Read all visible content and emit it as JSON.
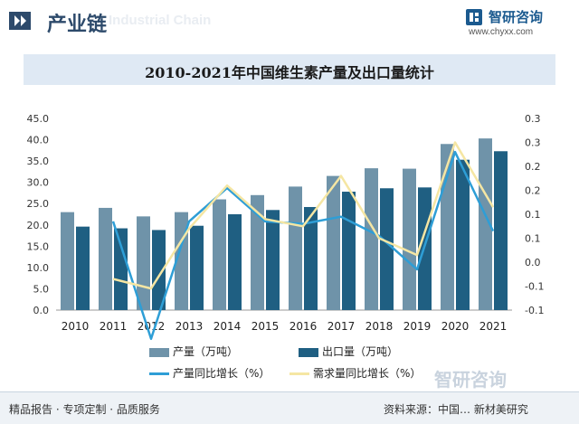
{
  "header": {
    "title": "产业链",
    "subtitle_en": "Industrial Chain",
    "logo_name": "智研咨询",
    "logo_url": "www.chyxx.com"
  },
  "chart_data": {
    "type": "bar",
    "title": "2010-2021年中国维生素产量及出口量统计",
    "categories": [
      "2010",
      "2011",
      "2012",
      "2013",
      "2014",
      "2015",
      "2016",
      "2017",
      "2018",
      "2019",
      "2020",
      "2021"
    ],
    "series": [
      {
        "name": "产量（万吨）",
        "kind": "bar",
        "axis": "left",
        "color": "#6f93a9",
        "values": [
          23,
          24,
          22,
          23,
          26,
          27,
          29,
          31.5,
          33.3,
          33.2,
          39,
          40.3
        ]
      },
      {
        "name": "出口量（万吨）",
        "kind": "bar",
        "axis": "left",
        "color": "#1f5f82",
        "values": [
          19.6,
          19.2,
          18.8,
          19.8,
          22.5,
          23.5,
          24.2,
          27.8,
          28.6,
          28.8,
          35.3,
          37.3
        ]
      },
      {
        "name": "产量同比增长（%）",
        "kind": "line",
        "axis": "right",
        "color": "#2e9ed6",
        "values": [
          null,
          0.085,
          -0.16,
          0.085,
          0.155,
          0.085,
          0.08,
          0.095,
          0.055,
          -0.015,
          0.23,
          0.065
        ]
      },
      {
        "name": "需求量同比增长（%）",
        "kind": "line",
        "axis": "right",
        "color": "#f5e6a3",
        "values": [
          null,
          -0.035,
          -0.055,
          0.07,
          0.16,
          0.09,
          0.075,
          0.18,
          0.05,
          0.015,
          0.25,
          0.115
        ]
      }
    ],
    "y_left": {
      "min": 0,
      "max": 45,
      "step": 5,
      "ticks": [
        "0.0",
        "5.0",
        "10.0",
        "15.0",
        "20.0",
        "25.0",
        "30.0",
        "35.0",
        "40.0",
        "45.0"
      ]
    },
    "y_right": {
      "min": -0.1,
      "max": 0.3,
      "step": 0.1,
      "ticks": [
        "-0.1",
        "-0.1",
        "0.0",
        "0.1",
        "0.1",
        "0.2",
        "0.2",
        "0.3",
        "0.3"
      ]
    },
    "grid": false,
    "legend_position": "bottom"
  },
  "watermark": "智研咨询",
  "footer": {
    "left": "精品报告 · 专项定制 · 品质服务",
    "right": "资料来源：中国… 新材美研究"
  }
}
